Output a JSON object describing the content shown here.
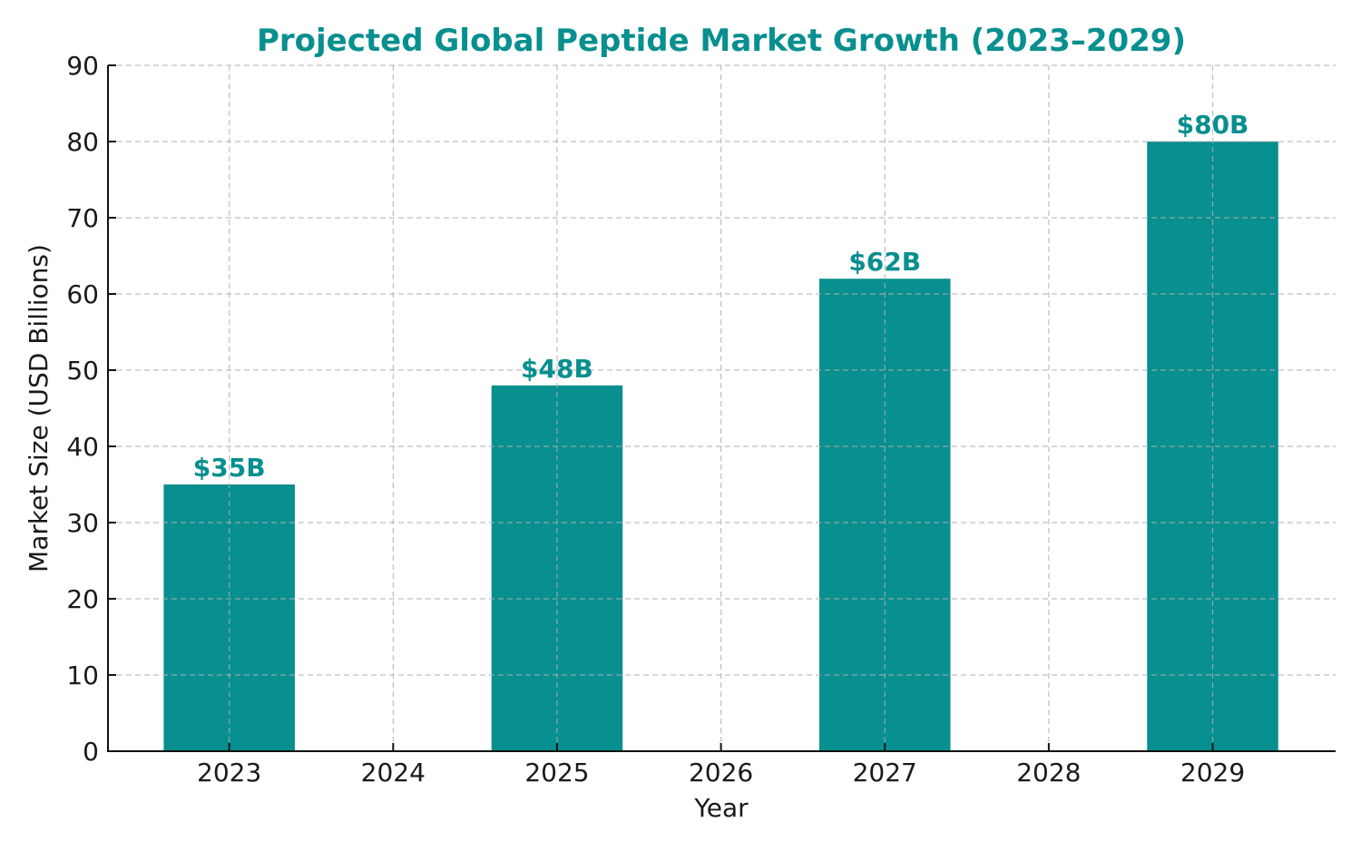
{
  "chart_data": {
    "type": "bar",
    "title": "Projected Global Peptide Market Growth (2023–2029)",
    "xlabel": "Year",
    "ylabel": "Market Size (USD Billions)",
    "x_ticks": [
      "2023",
      "2024",
      "2025",
      "2026",
      "2027",
      "2028",
      "2029"
    ],
    "categories": [
      "2023",
      "2025",
      "2027",
      "2029"
    ],
    "values": [
      35,
      48,
      62,
      80
    ],
    "data_labels": [
      "$35B",
      "$48B",
      "$62B",
      "$80B"
    ],
    "ylim": [
      0,
      90
    ],
    "xlim": [
      2022.26,
      2029.75
    ],
    "y_ticks": [
      0,
      10,
      20,
      30,
      40,
      50,
      60,
      70,
      80,
      90
    ],
    "grid": true,
    "bar_color": "#088F8F",
    "label_color": "#088F8F",
    "legend": "none"
  }
}
